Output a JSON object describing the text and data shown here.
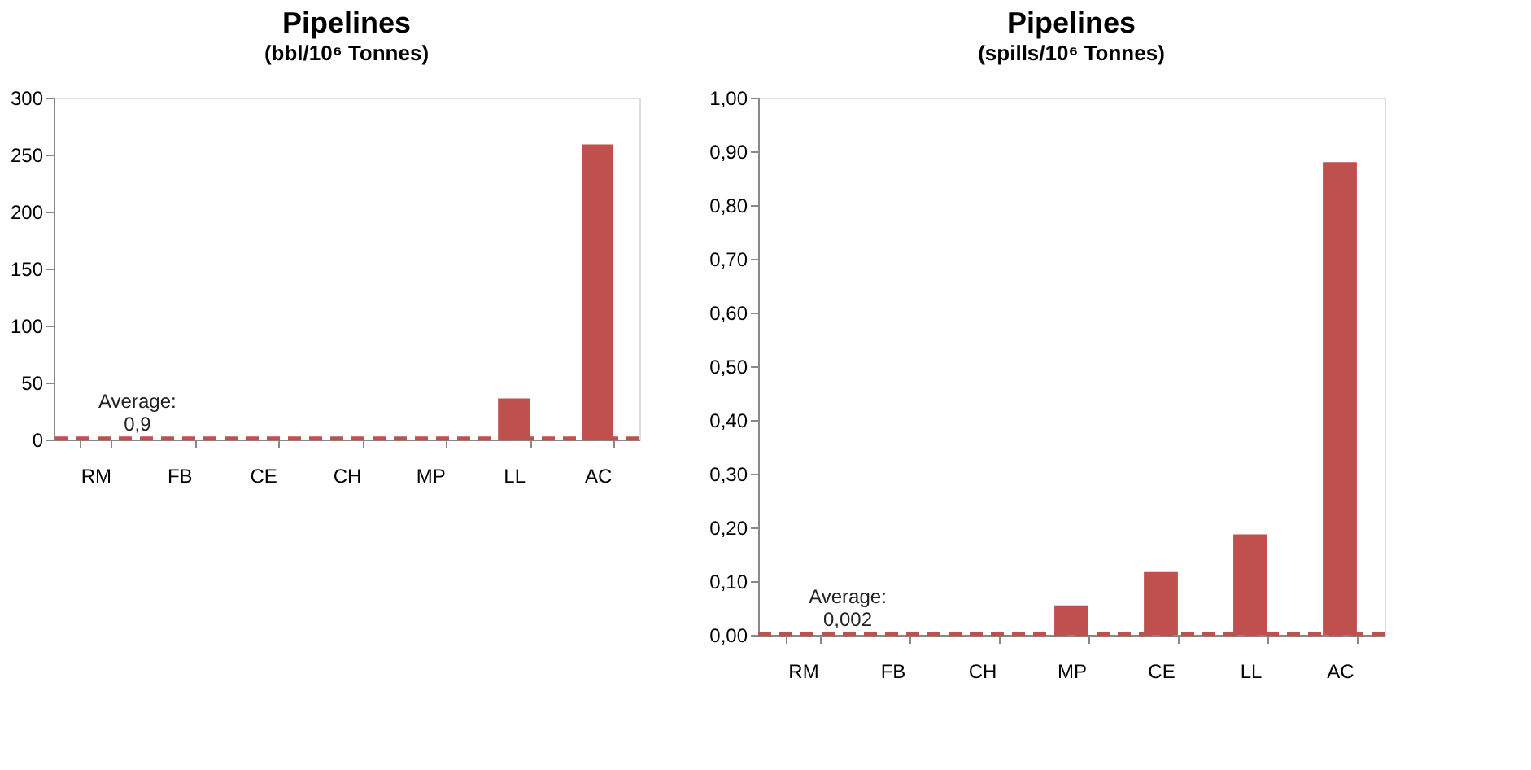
{
  "chart_data": [
    {
      "type": "bar",
      "title": "Pipelines",
      "subtitle": "(bbl/10⁶ Tonnes)",
      "categories": [
        "RM",
        "FB",
        "CE",
        "CH",
        "MP",
        "LL",
        "AC"
      ],
      "values": [
        0,
        0,
        0,
        0,
        0,
        36,
        259
      ],
      "color": "#c0504d",
      "ylim": [
        0,
        300
      ],
      "yticks": [
        0,
        50,
        100,
        150,
        200,
        250,
        300
      ],
      "grid": false,
      "ref_lines": [
        {
          "axis": "y",
          "value": 0.9,
          "label": "Average: 0,9",
          "color": "#c0504d",
          "line_style": "dashed"
        }
      ]
    },
    {
      "type": "bar",
      "title": "Pipelines",
      "subtitle": "(spills/10⁶ Tonnes)",
      "categories": [
        "RM",
        "FB",
        "CH",
        "MP",
        "CE",
        "LL",
        "AC"
      ],
      "values": [
        0,
        0,
        0,
        0.055,
        0.117,
        0.187,
        0.88
      ],
      "color": "#c0504d",
      "ylim": [
        0,
        1
      ],
      "yticks": [
        {
          "value": 0,
          "label": "0,00"
        },
        {
          "value": 0.1,
          "label": "0,10"
        },
        {
          "value": 0.2,
          "label": "0,20"
        },
        {
          "value": 0.3,
          "label": "0,30"
        },
        {
          "value": 0.4,
          "label": "0,40"
        },
        {
          "value": 0.5,
          "label": "0,50"
        },
        {
          "value": 0.6,
          "label": "0,60"
        },
        {
          "value": 0.7,
          "label": "0,70"
        },
        {
          "value": 0.8,
          "label": "0,80"
        },
        {
          "value": 0.9,
          "label": "0,90"
        },
        {
          "value": 1,
          "label": "1,00"
        }
      ],
      "grid": false,
      "ref_lines": [
        {
          "axis": "y",
          "value": 0.002,
          "label": "Average: 0,002",
          "color": "#c0504d",
          "line_style": "dashed"
        }
      ]
    }
  ]
}
